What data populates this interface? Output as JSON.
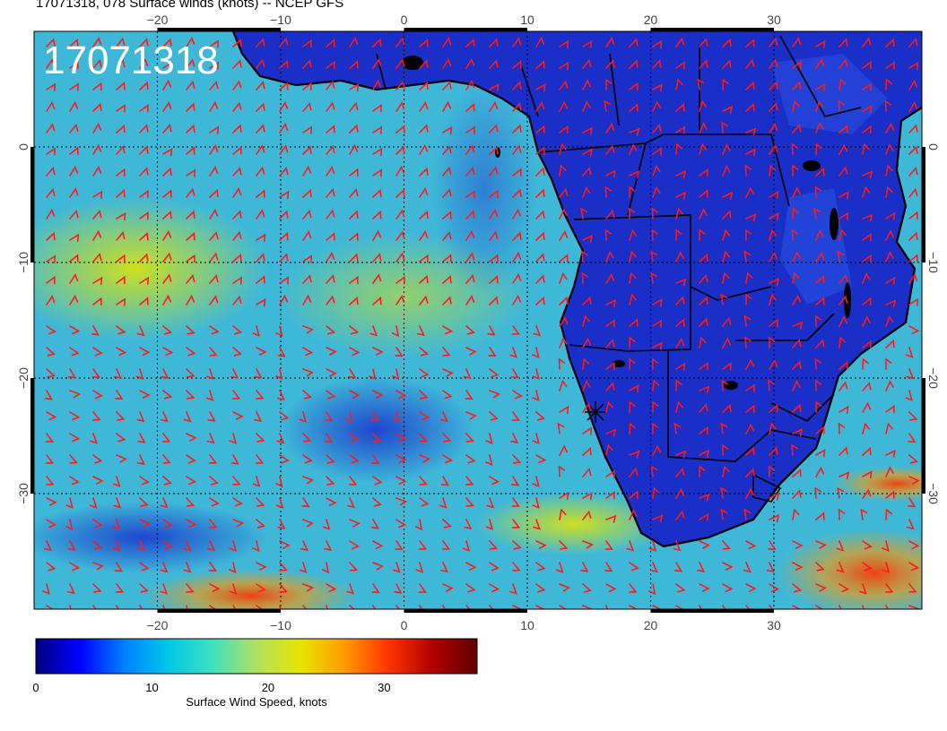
{
  "header": {
    "title": "17071318, 078 Surface winds (knots) -- NCEP GFS"
  },
  "map": {
    "stamp": "17071318",
    "lon_range": [
      -30,
      42
    ],
    "lat_range": [
      -40,
      10
    ],
    "lon_ticks": [
      {
        "value": -20,
        "label": "−20"
      },
      {
        "value": -10,
        "label": "−10"
      },
      {
        "value": 0,
        "label": "0"
      },
      {
        "value": 10,
        "label": "10"
      },
      {
        "value": 20,
        "label": "20"
      },
      {
        "value": 30,
        "label": "30"
      }
    ],
    "lat_ticks": [
      {
        "value": 0,
        "label": "0"
      },
      {
        "value": -10,
        "label": "−10"
      },
      {
        "value": -20,
        "label": "−20"
      },
      {
        "value": -30,
        "label": "−30"
      }
    ],
    "gridlines": "dotted",
    "land_color": "#1a2ec8",
    "ocean_color": "#3fb8d8",
    "barb_color": "#ff1a1a",
    "coast_color": "#000000"
  },
  "colorbar": {
    "label": "Surface Wind Speed, knots",
    "ticks": [
      {
        "value": 0,
        "label": "0"
      },
      {
        "value": 10,
        "label": "10"
      },
      {
        "value": 20,
        "label": "20"
      },
      {
        "value": 30,
        "label": "30"
      }
    ],
    "range": [
      0,
      38
    ],
    "colors": [
      "#00007f",
      "#0000ff",
      "#0080ff",
      "#00c8e6",
      "#40e0c0",
      "#b0e060",
      "#e6e600",
      "#ff9900",
      "#ff3300",
      "#b00000",
      "#600000"
    ]
  }
}
